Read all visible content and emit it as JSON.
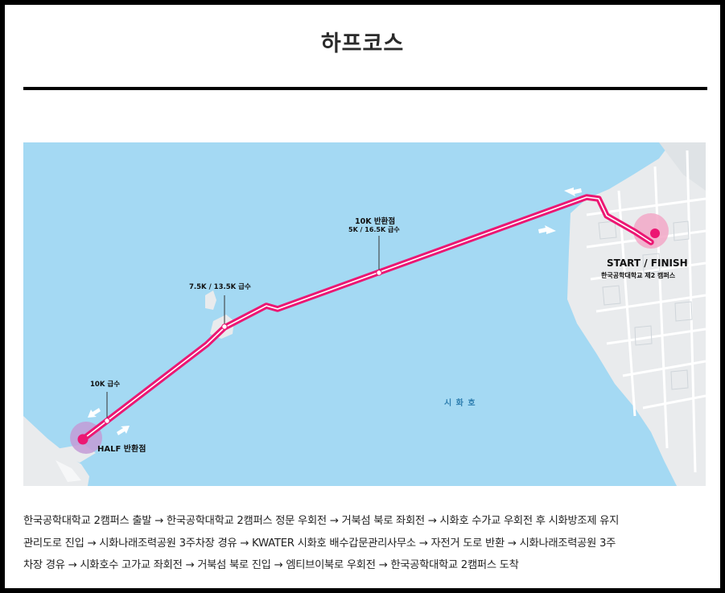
{
  "page": {
    "title": "하프코스"
  },
  "map": {
    "lake_label": "시 화 호",
    "markers": {
      "turnaround_10k": {
        "title": "10K 반환점",
        "subtitle": "5K / 16.5K 급수"
      },
      "water_7_5k": {
        "label": "7.5K / 13.5K 급수"
      },
      "water_10k": {
        "label": "10K 급수"
      },
      "half_turn": {
        "label": "HALF 반환점"
      },
      "start_finish": {
        "title": "START / FINISH",
        "subtitle": "한국공학대학교 제2 캠퍼스"
      }
    },
    "colors": {
      "water": "#a4d9f3",
      "land": "#e9ebed",
      "route": "#ec1773",
      "route_inner": "#ffffff"
    }
  },
  "route_description": {
    "lines": [
      "한국공학대학교 2캠퍼스 출발 → 한국공학대학교 2캠퍼스 정문 우회전 → 거북섬 북로 좌회전 → 시화호 수가교 우회전 후 시화방조제 유지",
      "관리도로 진입 → 시화나래조력공원 3주차장 경유 → KWATER 시화호 배수갑문관리사무소 → 자전거 도로 반환 → 시화나래조력공원 3주",
      "차장 경유 → 시화호수 고가교 좌회전 → 거북섬 북로 진입 → 엠티브이북로 우회전 → 한국공학대학교 2캠퍼스 도착"
    ]
  }
}
